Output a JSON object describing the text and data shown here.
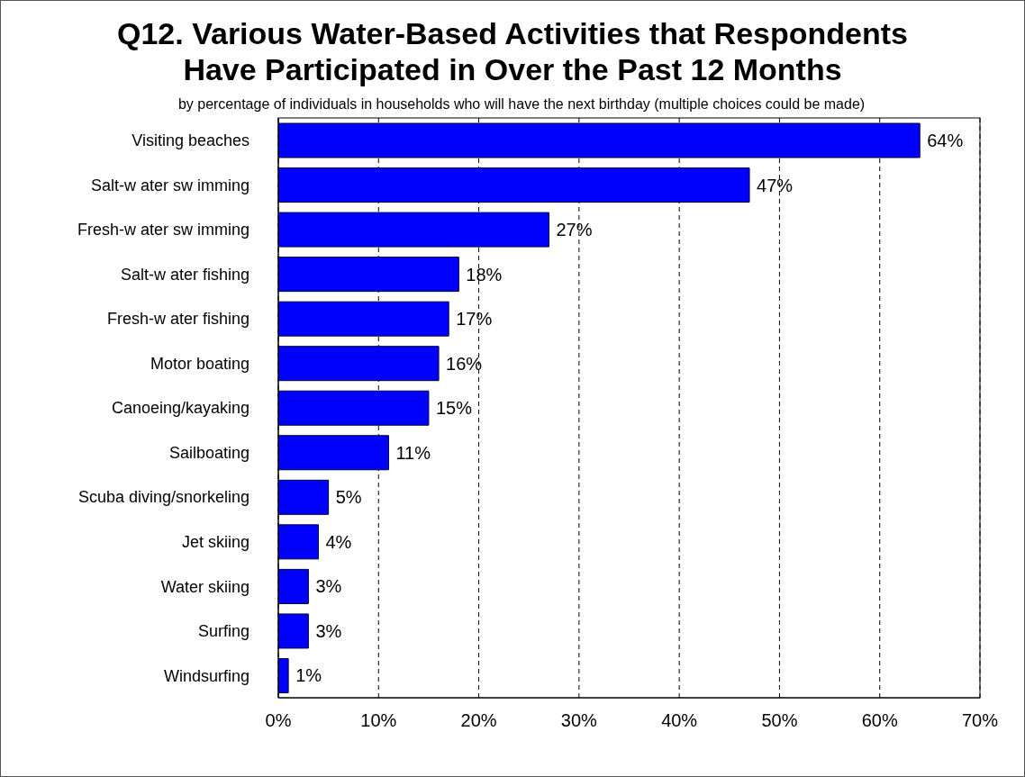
{
  "chart_data": {
    "type": "bar",
    "orientation": "horizontal",
    "title": "Q12.  Various Water-Based Activities that Respondents Have Participated in Over the Past 12 Months",
    "subtitle": "by percentage of individuals in households who will have the next birthday (multiple choices could be made)",
    "categories": [
      "Visiting beaches",
      "Salt-w ater sw imming",
      "Fresh-w ater sw imming",
      "Salt-w ater fishing",
      "Fresh-w ater fishing",
      "Motor boating",
      "Canoeing/kayaking",
      "Sailboating",
      "Scuba diving/snorkeling",
      "Jet skiing",
      "Water skiing",
      "Surfing",
      "Windsurfing"
    ],
    "values": [
      64,
      47,
      27,
      18,
      17,
      16,
      15,
      11,
      5,
      4,
      3,
      3,
      1
    ],
    "value_labels": [
      "64%",
      "47%",
      "27%",
      "18%",
      "17%",
      "16%",
      "15%",
      "11%",
      "5%",
      "4%",
      "3%",
      "3%",
      "1%"
    ],
    "color": "#0000ff",
    "xlim": [
      0,
      70
    ],
    "xticks": [
      {
        "value": 0,
        "label": "0%"
      },
      {
        "value": 10,
        "label": "10%"
      },
      {
        "value": 20,
        "label": "20%"
      },
      {
        "value": 30,
        "label": "30%"
      },
      {
        "value": 40,
        "label": "40%"
      },
      {
        "value": 50,
        "label": "50%"
      },
      {
        "value": 60,
        "label": "60%"
      },
      {
        "value": 70,
        "label": "70%"
      }
    ],
    "grid": "x"
  }
}
